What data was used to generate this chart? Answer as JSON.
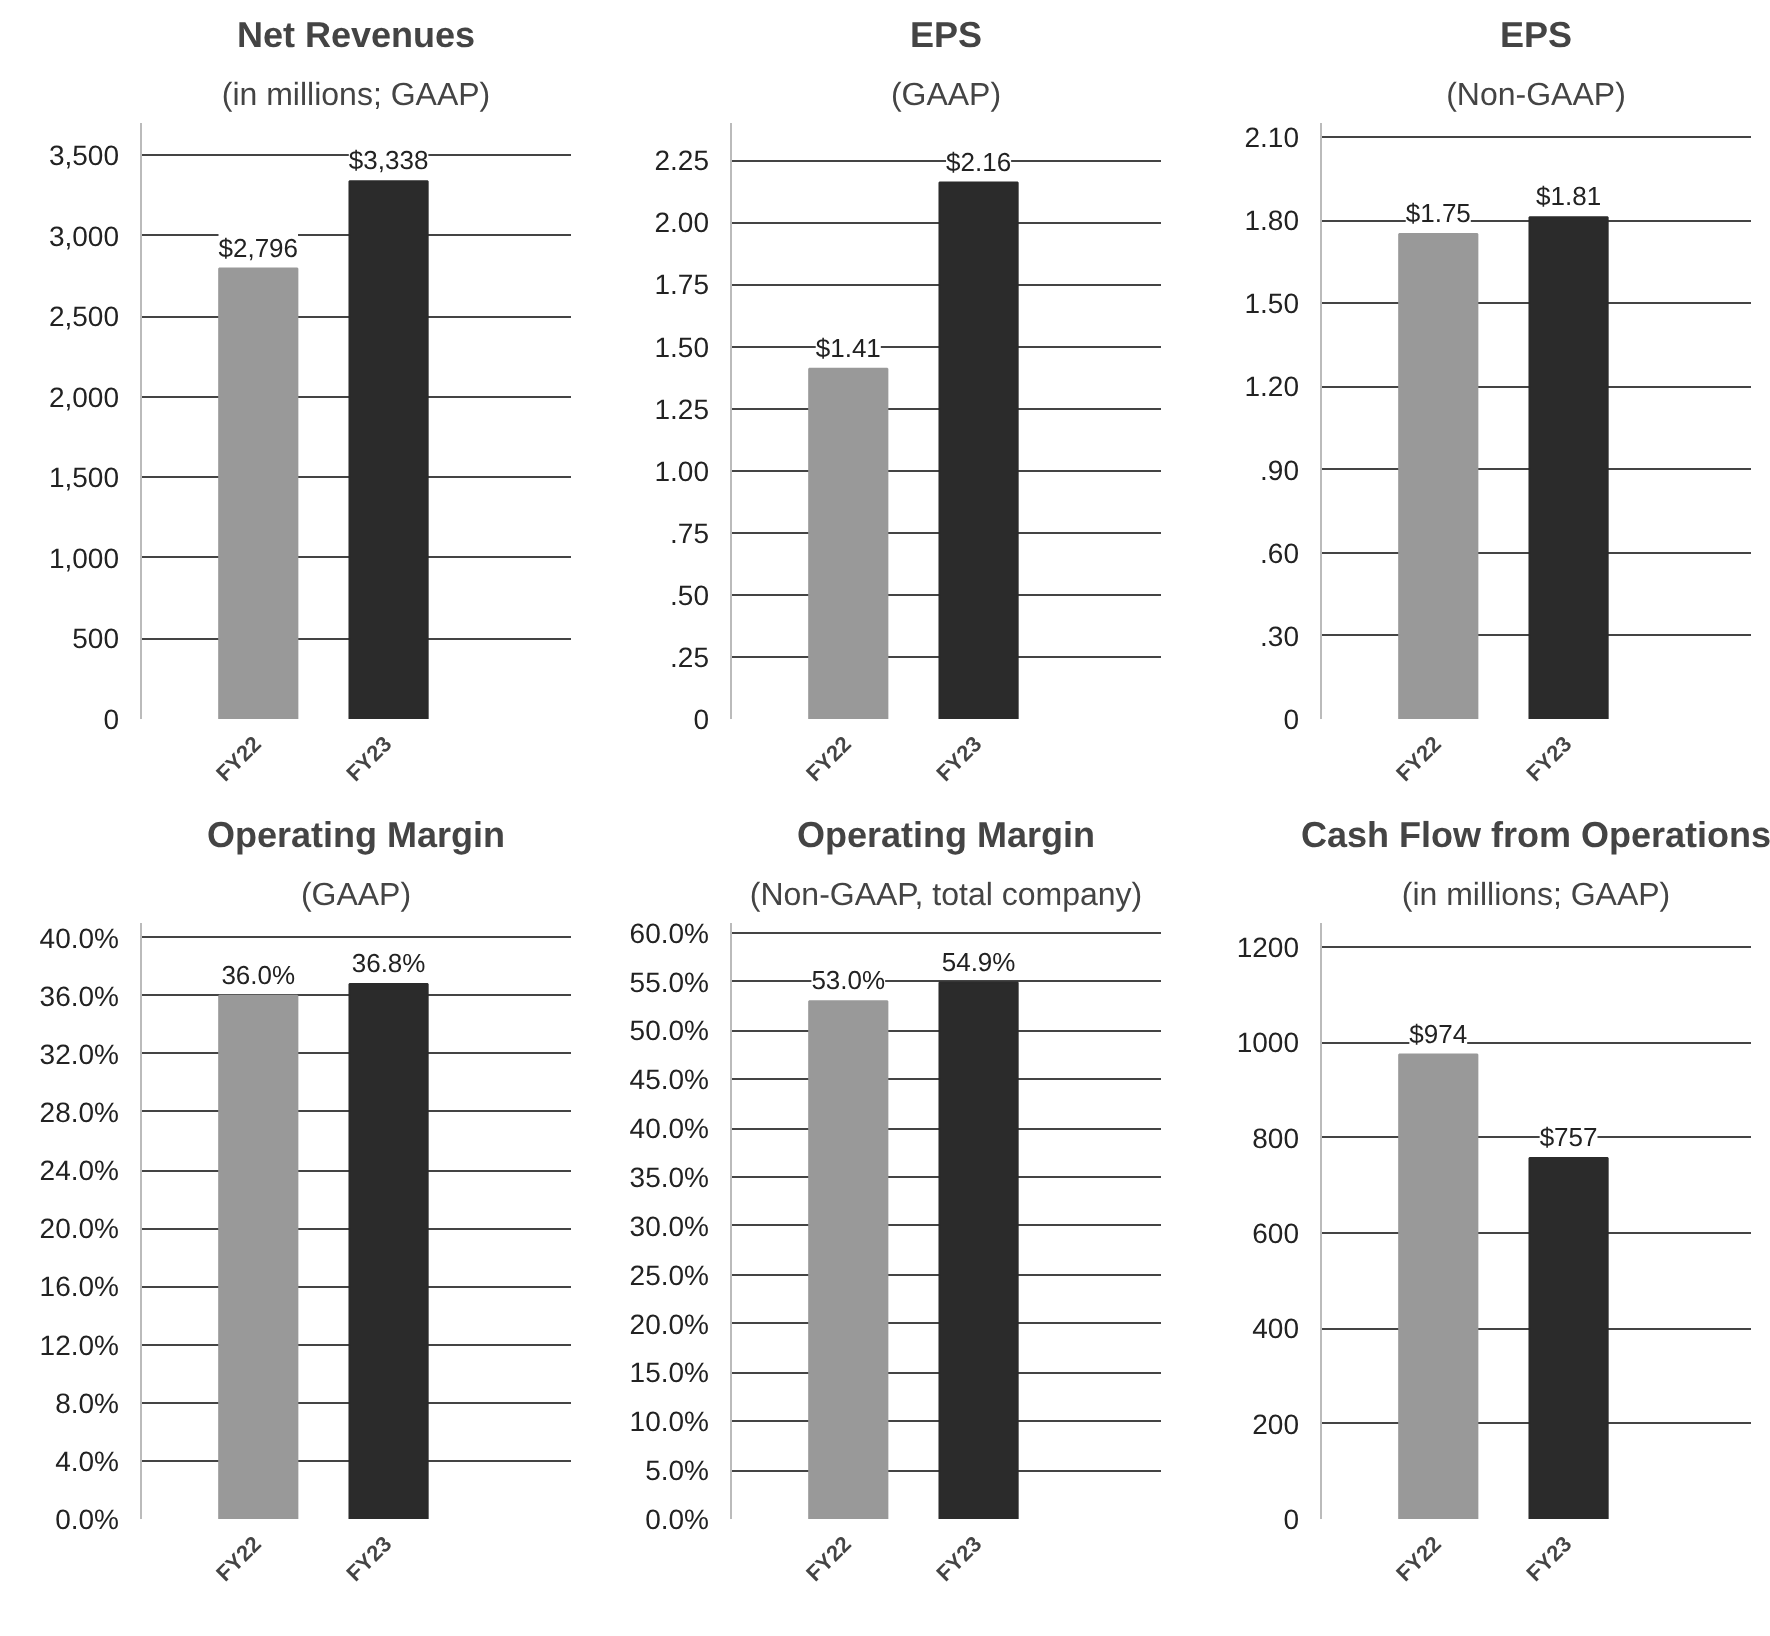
{
  "chart_data": [
    {
      "type": "bar",
      "title": "Net Revenues",
      "subtitle": "(in millions; GAAP)",
      "categories": [
        "FY22",
        "FY23"
      ],
      "values": [
        2796,
        3338
      ],
      "colors": [
        "#999999",
        "#2b2b2b"
      ],
      "value_labels": [
        "$2,796",
        "$3,338"
      ],
      "ylim": [
        0,
        3700
      ],
      "yticks": [
        0,
        500,
        {
          "value": 1000,
          "label": "1,000"
        },
        {
          "value": 1500,
          "label": "1,500"
        },
        {
          "value": 2000,
          "label": "2,000"
        },
        {
          "value": 2500,
          "label": "2,500"
        },
        {
          "value": 3000,
          "label": "3,000"
        },
        {
          "value": 3500,
          "label": "3,500"
        }
      ],
      "grid": "y"
    },
    {
      "type": "bar",
      "title": "EPS",
      "subtitle": "(GAAP)",
      "categories": [
        "FY22",
        "FY23"
      ],
      "values": [
        1.41,
        2.16
      ],
      "colors": [
        "#999999",
        "#2b2b2b"
      ],
      "value_labels": [
        "$1.41",
        "$2.16"
      ],
      "ylim": [
        0,
        2.4
      ],
      "yticks": [
        0,
        {
          "value": 0.25,
          "label": ".25"
        },
        {
          "value": 0.5,
          "label": ".50"
        },
        {
          "value": 0.75,
          "label": ".75"
        },
        {
          "value": 1.0,
          "label": "1.00"
        },
        1.25,
        {
          "value": 1.5,
          "label": "1.50"
        },
        1.75,
        {
          "value": 2.0,
          "label": "2.00"
        },
        2.25
      ],
      "grid": "y"
    },
    {
      "type": "bar",
      "title": "EPS",
      "subtitle": "(Non-GAAP)",
      "categories": [
        "FY22",
        "FY23"
      ],
      "values": [
        1.75,
        1.81
      ],
      "colors": [
        "#999999",
        "#2b2b2b"
      ],
      "value_labels": [
        "$1.75",
        "$1.81"
      ],
      "ylim": [
        0,
        2.15
      ],
      "yticks": [
        0,
        {
          "value": 0.3,
          "label": ".30"
        },
        {
          "value": 0.6,
          "label": ".60"
        },
        {
          "value": 0.9,
          "label": ".90"
        },
        {
          "value": 1.2,
          "label": "1.20"
        },
        {
          "value": 1.5,
          "label": "1.50"
        },
        {
          "value": 1.8,
          "label": "1.80"
        },
        {
          "value": 2.1,
          "label": "2.10"
        }
      ],
      "grid": "y"
    },
    {
      "type": "bar",
      "title": "Operating Margin",
      "subtitle": "(GAAP)",
      "categories": [
        "FY22",
        "FY23"
      ],
      "values": [
        36.0,
        36.8
      ],
      "colors": [
        "#999999",
        "#2b2b2b"
      ],
      "value_labels": [
        "36.0%",
        "36.8%"
      ],
      "ylim": [
        0,
        41
      ],
      "yticks": [
        {
          "value": 0,
          "label": "0.0%"
        },
        {
          "value": 4,
          "label": "4.0%"
        },
        {
          "value": 8,
          "label": "8.0%"
        },
        {
          "value": 12,
          "label": "12.0%"
        },
        {
          "value": 16,
          "label": "16.0%"
        },
        {
          "value": 20,
          "label": "20.0%"
        },
        {
          "value": 24,
          "label": "24.0%"
        },
        {
          "value": 28,
          "label": "28.0%"
        },
        {
          "value": 32,
          "label": "32.0%"
        },
        {
          "value": 36,
          "label": "36.0%"
        },
        {
          "value": 40,
          "label": "40.0%"
        }
      ],
      "grid": "y"
    },
    {
      "type": "bar",
      "title": "Operating Margin",
      "subtitle": "(Non-GAAP, total company)",
      "categories": [
        "FY22",
        "FY23"
      ],
      "values": [
        53.0,
        54.9
      ],
      "colors": [
        "#999999",
        "#2b2b2b"
      ],
      "value_labels": [
        "53.0%",
        "54.9%"
      ],
      "ylim": [
        0,
        61
      ],
      "yticks": [
        {
          "value": 0,
          "label": "0.0%"
        },
        {
          "value": 5,
          "label": "5.0%"
        },
        {
          "value": 10,
          "label": "10.0%"
        },
        {
          "value": 15,
          "label": "15.0%"
        },
        {
          "value": 20,
          "label": "20.0%"
        },
        {
          "value": 25,
          "label": "25.0%"
        },
        {
          "value": 30,
          "label": "30.0%"
        },
        {
          "value": 35,
          "label": "35.0%"
        },
        {
          "value": 40,
          "label": "40.0%"
        },
        {
          "value": 45,
          "label": "45.0%"
        },
        {
          "value": 50,
          "label": "50.0%"
        },
        {
          "value": 55,
          "label": "55.0%"
        },
        {
          "value": 60,
          "label": "60.0%"
        }
      ],
      "grid": "y"
    },
    {
      "type": "bar",
      "title": "Cash Flow from Operations",
      "subtitle": "(in millions; GAAP)",
      "categories": [
        "FY22",
        "FY23"
      ],
      "values": [
        974,
        757
      ],
      "colors": [
        "#999999",
        "#2b2b2b"
      ],
      "value_labels": [
        "$974",
        "$757"
      ],
      "ylim": [
        0,
        1250
      ],
      "yticks": [
        0,
        200,
        400,
        600,
        800,
        1000,
        1200
      ],
      "grid": "y"
    }
  ]
}
